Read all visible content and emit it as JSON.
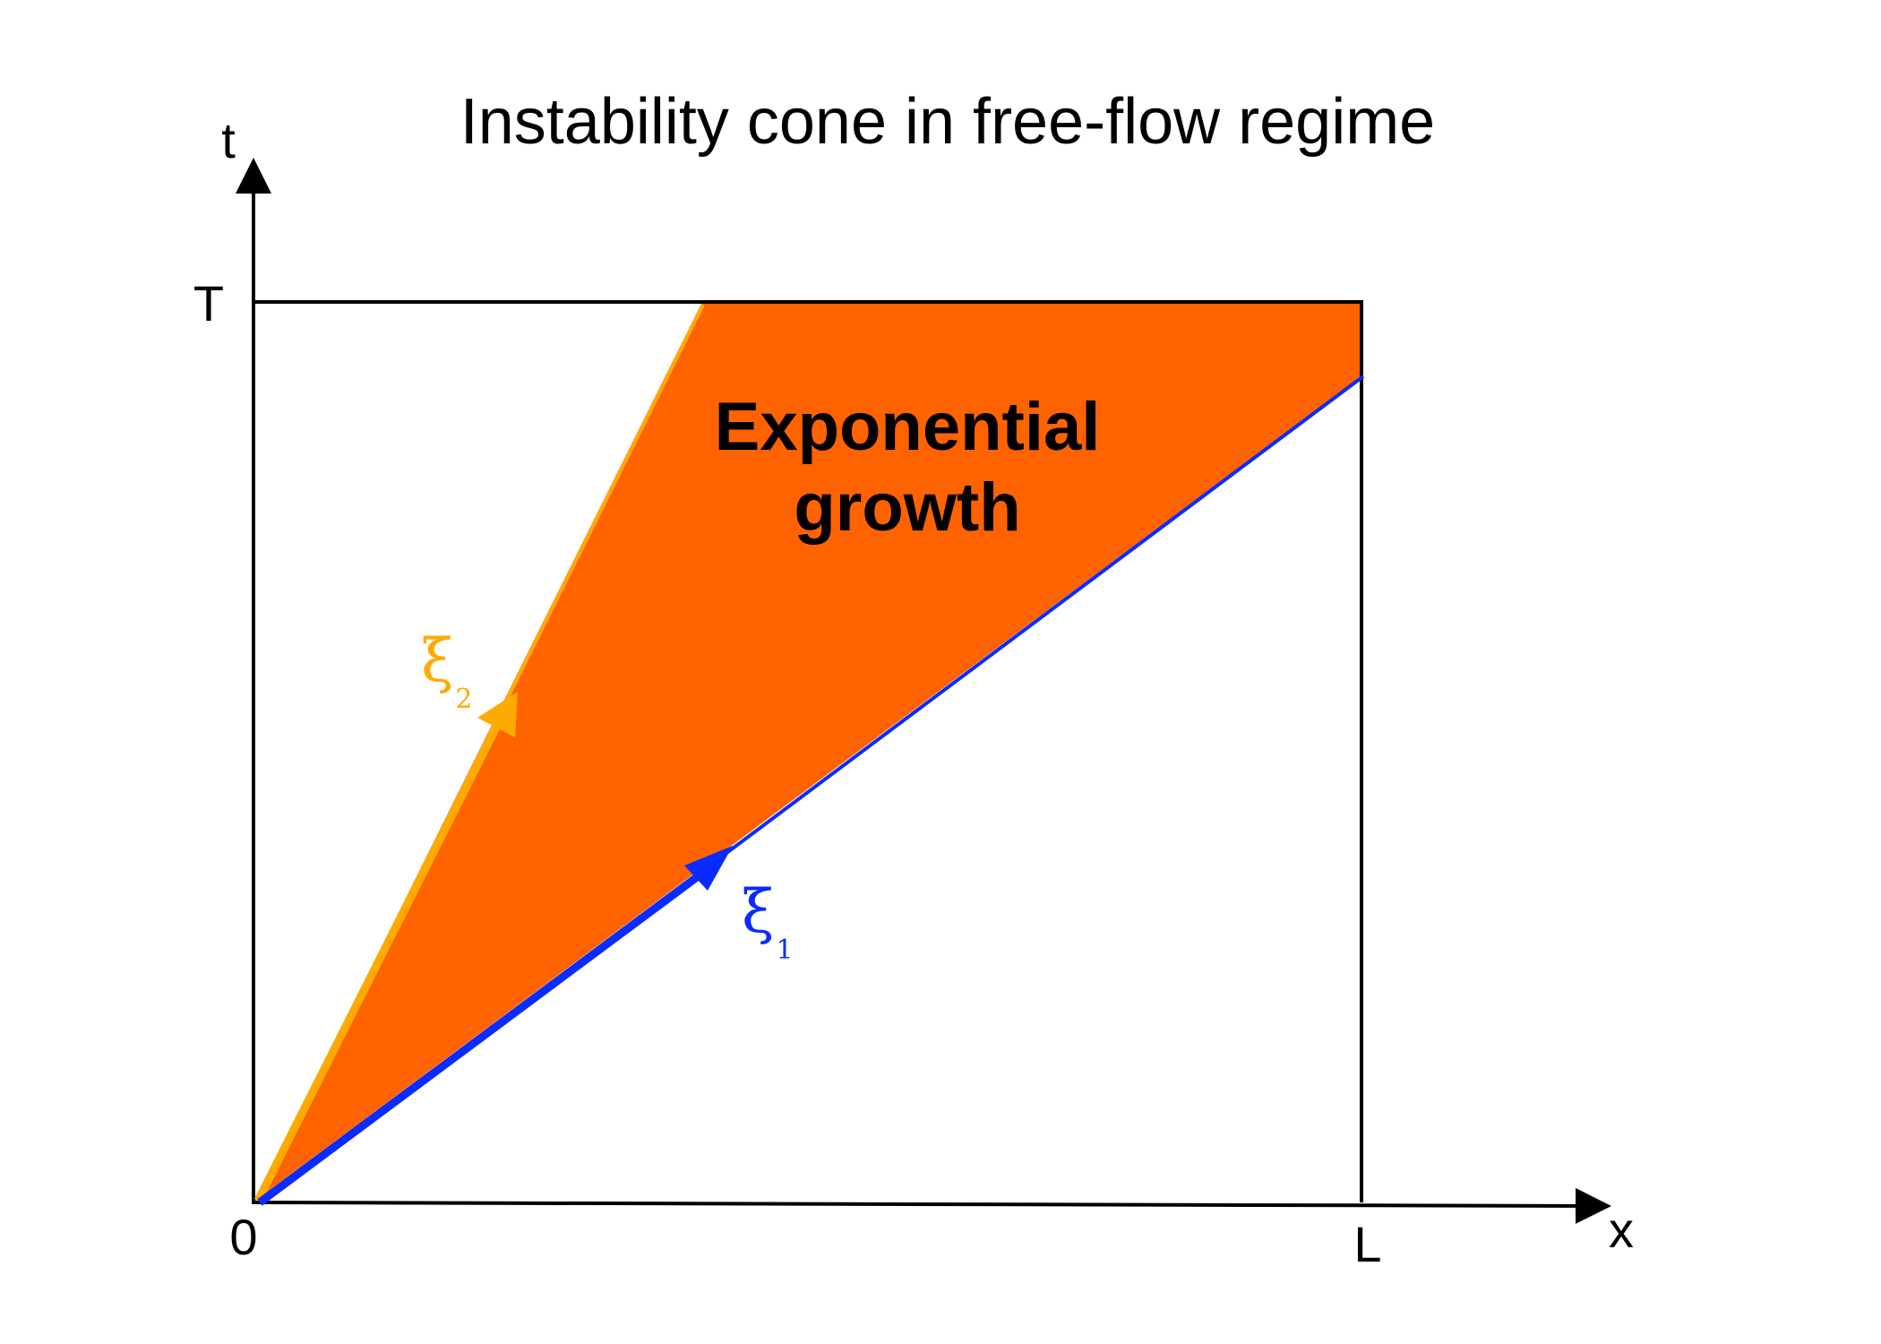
{
  "diagram": {
    "title": "Instability cone in free-flow regime",
    "axes": {
      "y_label": "t",
      "x_label": "x",
      "origin_label": "0",
      "t_max_label": "T",
      "x_max_label": "L"
    },
    "region": {
      "label_line1": "Exponential",
      "label_line2": "growth",
      "color": "#ff6300"
    },
    "characteristics": [
      {
        "symbol": "ξ",
        "subscript": "1",
        "color": "#0a2bff"
      },
      {
        "symbol": "ξ",
        "subscript": "2",
        "color": "#ffaa00"
      }
    ],
    "colors": {
      "axis": "#000000",
      "background": "#ffffff"
    }
  }
}
